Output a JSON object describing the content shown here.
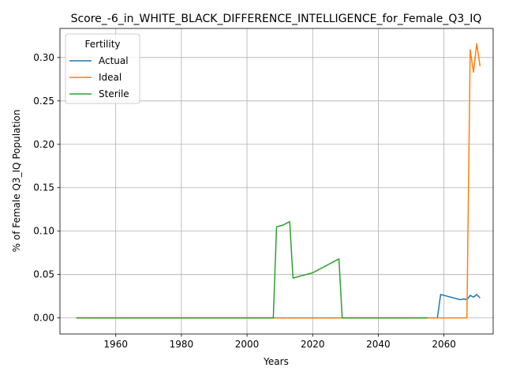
{
  "chart_data": {
    "type": "line",
    "title": "Score_-6_in_WHITE_BLACK_DIFFERENCE_INTELLIGENCE_for_Female_Q3_IQ",
    "xlabel": "Years",
    "ylabel": "% of Female Q3_IQ Population",
    "xlim": [
      1943,
      2075
    ],
    "ylim": [
      -0.0185,
      0.3335
    ],
    "xticks": [
      1960,
      1980,
      2000,
      2020,
      2040,
      2060
    ],
    "yticks": [
      0.0,
      0.05,
      0.1,
      0.15,
      0.2,
      0.25,
      0.3
    ],
    "ytick_labels": [
      "0.00",
      "0.05",
      "0.10",
      "0.15",
      "0.20",
      "0.25",
      "0.30"
    ],
    "grid": true,
    "legend": {
      "title": "Fertility",
      "placement": "upper left"
    },
    "series": [
      {
        "name": "Actual",
        "color": "#1f77b4",
        "points": [
          [
            1948,
            0.0
          ],
          [
            2058,
            0.0
          ],
          [
            2059,
            0.027
          ],
          [
            2060,
            0.026
          ],
          [
            2061,
            0.025
          ],
          [
            2062,
            0.024
          ],
          [
            2063,
            0.023
          ],
          [
            2064,
            0.022
          ],
          [
            2065,
            0.021
          ],
          [
            2066,
            0.022
          ],
          [
            2067,
            0.021
          ],
          [
            2068,
            0.026
          ],
          [
            2069,
            0.024
          ],
          [
            2070,
            0.027
          ],
          [
            2071,
            0.023
          ]
        ]
      },
      {
        "name": "Ideal",
        "color": "#ff7f0e",
        "points": [
          [
            1948,
            0.0
          ],
          [
            2066,
            0.0
          ],
          [
            2067,
            0.0
          ],
          [
            2068,
            0.309
          ],
          [
            2069,
            0.283
          ],
          [
            2070,
            0.316
          ],
          [
            2071,
            0.29
          ]
        ]
      },
      {
        "name": "Sterile",
        "color": "#2ca02c",
        "points": [
          [
            1948,
            0.0
          ],
          [
            2008,
            0.0
          ],
          [
            2009,
            0.105
          ],
          [
            2010,
            0.106
          ],
          [
            2011,
            0.107
          ],
          [
            2012,
            0.109
          ],
          [
            2013,
            0.111
          ],
          [
            2014,
            0.046
          ],
          [
            2015,
            0.047
          ],
          [
            2016,
            0.048
          ],
          [
            2017,
            0.049
          ],
          [
            2018,
            0.05
          ],
          [
            2019,
            0.051
          ],
          [
            2020,
            0.052
          ],
          [
            2021,
            0.054
          ],
          [
            2022,
            0.056
          ],
          [
            2023,
            0.058
          ],
          [
            2024,
            0.06
          ],
          [
            2025,
            0.062
          ],
          [
            2026,
            0.064
          ],
          [
            2027,
            0.066
          ],
          [
            2028,
            0.068
          ],
          [
            2029,
            0.0
          ],
          [
            2055,
            0.0
          ]
        ]
      }
    ]
  }
}
